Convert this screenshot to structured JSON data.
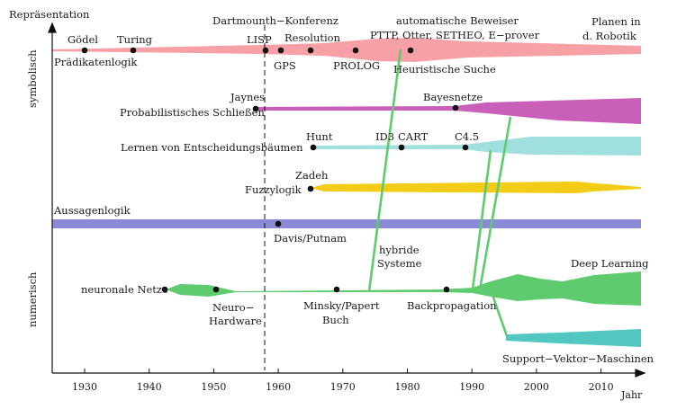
{
  "axes": {
    "y_title": "Repräsentation",
    "y_top": "symbolisch",
    "y_bottom": "numerisch",
    "x_unit": "Jahr",
    "years": [
      "1930",
      "1940",
      "1950",
      "1960",
      "1970",
      "1980",
      "1990",
      "2000",
      "2010"
    ]
  },
  "colors": {
    "symbolic": "#f7a0a6",
    "probabilistic": "#c95fb9",
    "decision_trees": "#9fe0de",
    "fuzzy": "#f2cc16",
    "propositional": "#8a8ad6",
    "neural": "#5ecb6e",
    "svm": "#52c7c2",
    "hybrid": "#5ecb6e",
    "marker": "#111111",
    "axis": "#111111"
  },
  "labels": {
    "goedel": "Gödel",
    "turing": "Turing",
    "dartmouth": "Dartmounth−Konferenz",
    "lisp": "LISP",
    "resolution": "Resolution",
    "auto_prover": "automatische Beweiser",
    "pttp": "PTTP, Otter, SETHEO, E−prover",
    "planen1": "Planen in",
    "planen2": "d. Robotik",
    "praedikatenlogik": "Prädikatenlogik",
    "gps": "GPS",
    "prolog": "PROLOG",
    "heuristik": "Heuristische Suche",
    "jaynes": "Jaynes",
    "bayes": "Bayesnetze",
    "prob_schliessen": "Probabilistisches Schließen",
    "hunt": "Hunt",
    "id3": "ID3",
    "cart": "CART",
    "c45": "C4.5",
    "entscheidung": "Lernen von Entscheidungsbäumen",
    "zadeh": "Zadeh",
    "fuzzy": "Fuzzylogik",
    "aussagen": "Aussagenlogik",
    "davis": "Davis/Putnam",
    "hybrid1": "hybride",
    "hybrid2": "Systeme",
    "deep": "Deep Learning",
    "nn": "neuronale Netze",
    "nh1": "Neuro−",
    "nh2": "Hardware",
    "minsky1": "Minsky/Papert",
    "minsky2": "Buch",
    "backprop": "Backpropagation",
    "svm": "Support−Vektor−Maschinen"
  }
}
